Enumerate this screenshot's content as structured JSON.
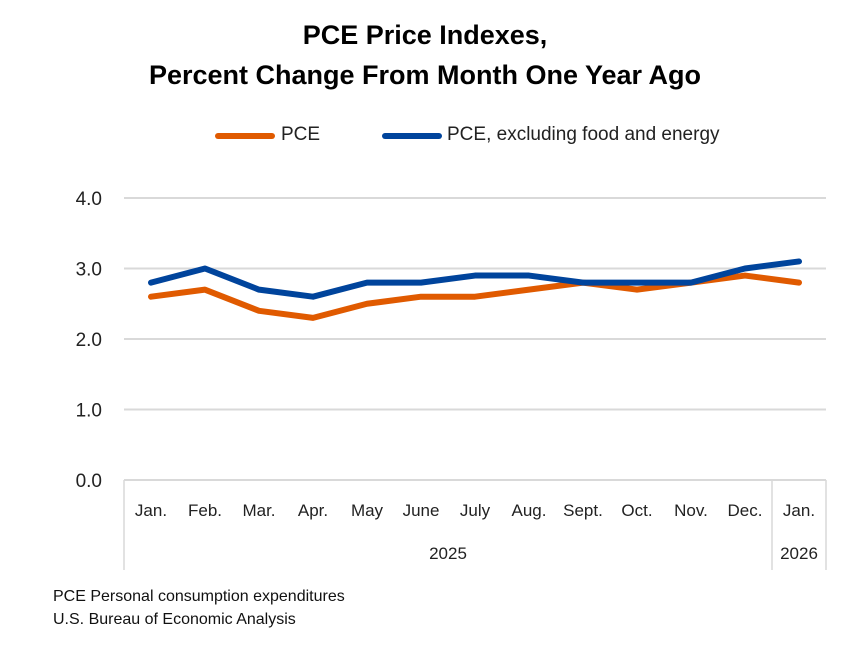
{
  "chart_data": {
    "type": "line",
    "title": [
      "PCE Price Indexes,",
      "Percent Change From Month One Year Ago"
    ],
    "categories": [
      "Jan.",
      "Feb.",
      "Mar.",
      "Apr.",
      "May",
      "June",
      "July",
      "Aug.",
      "Sept.",
      "Oct.",
      "Nov.",
      "Dec.",
      "Jan."
    ],
    "year_groups": [
      {
        "label": "2025",
        "span": 12
      },
      {
        "label": "2026",
        "span": 1
      }
    ],
    "series": [
      {
        "name": "PCE",
        "color": "#e05a00",
        "values": [
          2.6,
          2.7,
          2.4,
          2.3,
          2.5,
          2.6,
          2.6,
          2.7,
          2.8,
          2.7,
          2.8,
          2.9,
          2.8
        ]
      },
      {
        "name": "PCE, excluding food and energy",
        "color": "#00449c",
        "values": [
          2.8,
          3.0,
          2.7,
          2.6,
          2.8,
          2.8,
          2.9,
          2.9,
          2.8,
          2.8,
          2.8,
          3.0,
          3.1
        ]
      }
    ],
    "ylim": [
      0,
      4
    ],
    "yticks": [
      "0.0",
      "1.0",
      "2.0",
      "3.0",
      "4.0"
    ],
    "grid": true,
    "legend_position": "top"
  },
  "footnotes": [
    "PCE Personal consumption expenditures",
    "U.S. Bureau of Economic Analysis"
  ]
}
